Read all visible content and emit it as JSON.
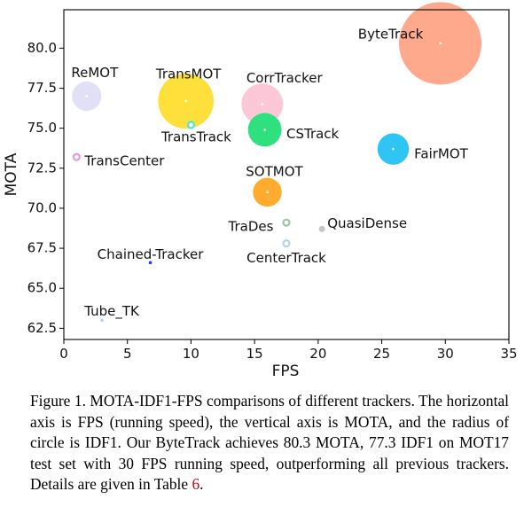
{
  "chart_data": {
    "type": "scatter",
    "xlabel": "FPS",
    "ylabel": "MOTA",
    "xlim": [
      0,
      35
    ],
    "ylim": [
      61.8,
      82.4
    ],
    "xticks": [
      "0",
      "5",
      "10",
      "15",
      "20",
      "25",
      "30",
      "35"
    ],
    "yticks": [
      "62.5",
      "65.0",
      "67.5",
      "70.0",
      "72.5",
      "75.0",
      "77.5",
      "80.0"
    ],
    "grid": false,
    "size_encoding": "IDF1",
    "points": [
      {
        "label": "ByteTrack",
        "fps": 29.6,
        "mota": 80.3,
        "idf1": 77.3,
        "color": "#ffa98c",
        "style": "filled"
      },
      {
        "label": "ReMOT",
        "fps": 1.8,
        "mota": 77.0,
        "idf1": 72.0,
        "color": "#e2e0f6",
        "style": "filled"
      },
      {
        "label": "TransMOT",
        "fps": 9.6,
        "mota": 76.7,
        "idf1": 75.1,
        "color": "#ffe03a",
        "style": "filled"
      },
      {
        "label": "CorrTracker",
        "fps": 15.6,
        "mota": 76.5,
        "idf1": 73.6,
        "color": "#fcc8d8",
        "style": "filled"
      },
      {
        "label": "TransTrack",
        "fps": 10.0,
        "mota": 75.2,
        "idf1": 63.5,
        "color": "#4fe0ea",
        "style": "ring"
      },
      {
        "label": "CSTrack",
        "fps": 15.8,
        "mota": 74.9,
        "idf1": 72.6,
        "color": "#2ee07e",
        "style": "filled"
      },
      {
        "label": "FairMOT",
        "fps": 25.9,
        "mota": 73.7,
        "idf1": 72.3,
        "color": "#2ec5f5",
        "style": "filled"
      },
      {
        "label": "TransCenter",
        "fps": 1.0,
        "mota": 73.2,
        "idf1": 62.2,
        "color": "#e79bd6",
        "style": "ring"
      },
      {
        "label": "SOTMOT",
        "fps": 16.0,
        "mota": 71.0,
        "idf1": 71.9,
        "color": "#ffab2e",
        "style": "filled"
      },
      {
        "label": "TraDes",
        "fps": 17.5,
        "mota": 69.1,
        "idf1": 63.9,
        "color": "#9ec69e",
        "style": "ring"
      },
      {
        "label": "QuasiDense",
        "fps": 20.3,
        "mota": 68.7,
        "idf1": 66.3,
        "color": "#c6c6c6",
        "style": "filled"
      },
      {
        "label": "CenterTrack",
        "fps": 17.5,
        "mota": 67.8,
        "idf1": 64.7,
        "color": "#b5d2e6",
        "style": "ring"
      },
      {
        "label": "Chained-Tracker",
        "fps": 6.8,
        "mota": 66.6,
        "idf1": 57.4,
        "color": "#2a3cf0",
        "style": "filled"
      },
      {
        "label": "Tube_TK",
        "fps": 3.0,
        "mota": 63.0,
        "idf1": 58.6,
        "color": "#b5d2e6",
        "style": "filled"
      }
    ]
  },
  "caption": {
    "text": "Figure 1. MOTA-IDF1-FPS comparisons of different trackers. The horizontal axis is FPS (running speed), the vertical axis is MOTA, and the radius of circle is IDF1. Our ByteTrack achieves 80.3 MOTA, 77.3 IDF1 on MOT17 test set with 30 FPS running speed, outperforming all previous trackers. Details are given in Table ",
    "ref": "6",
    "end": "."
  }
}
